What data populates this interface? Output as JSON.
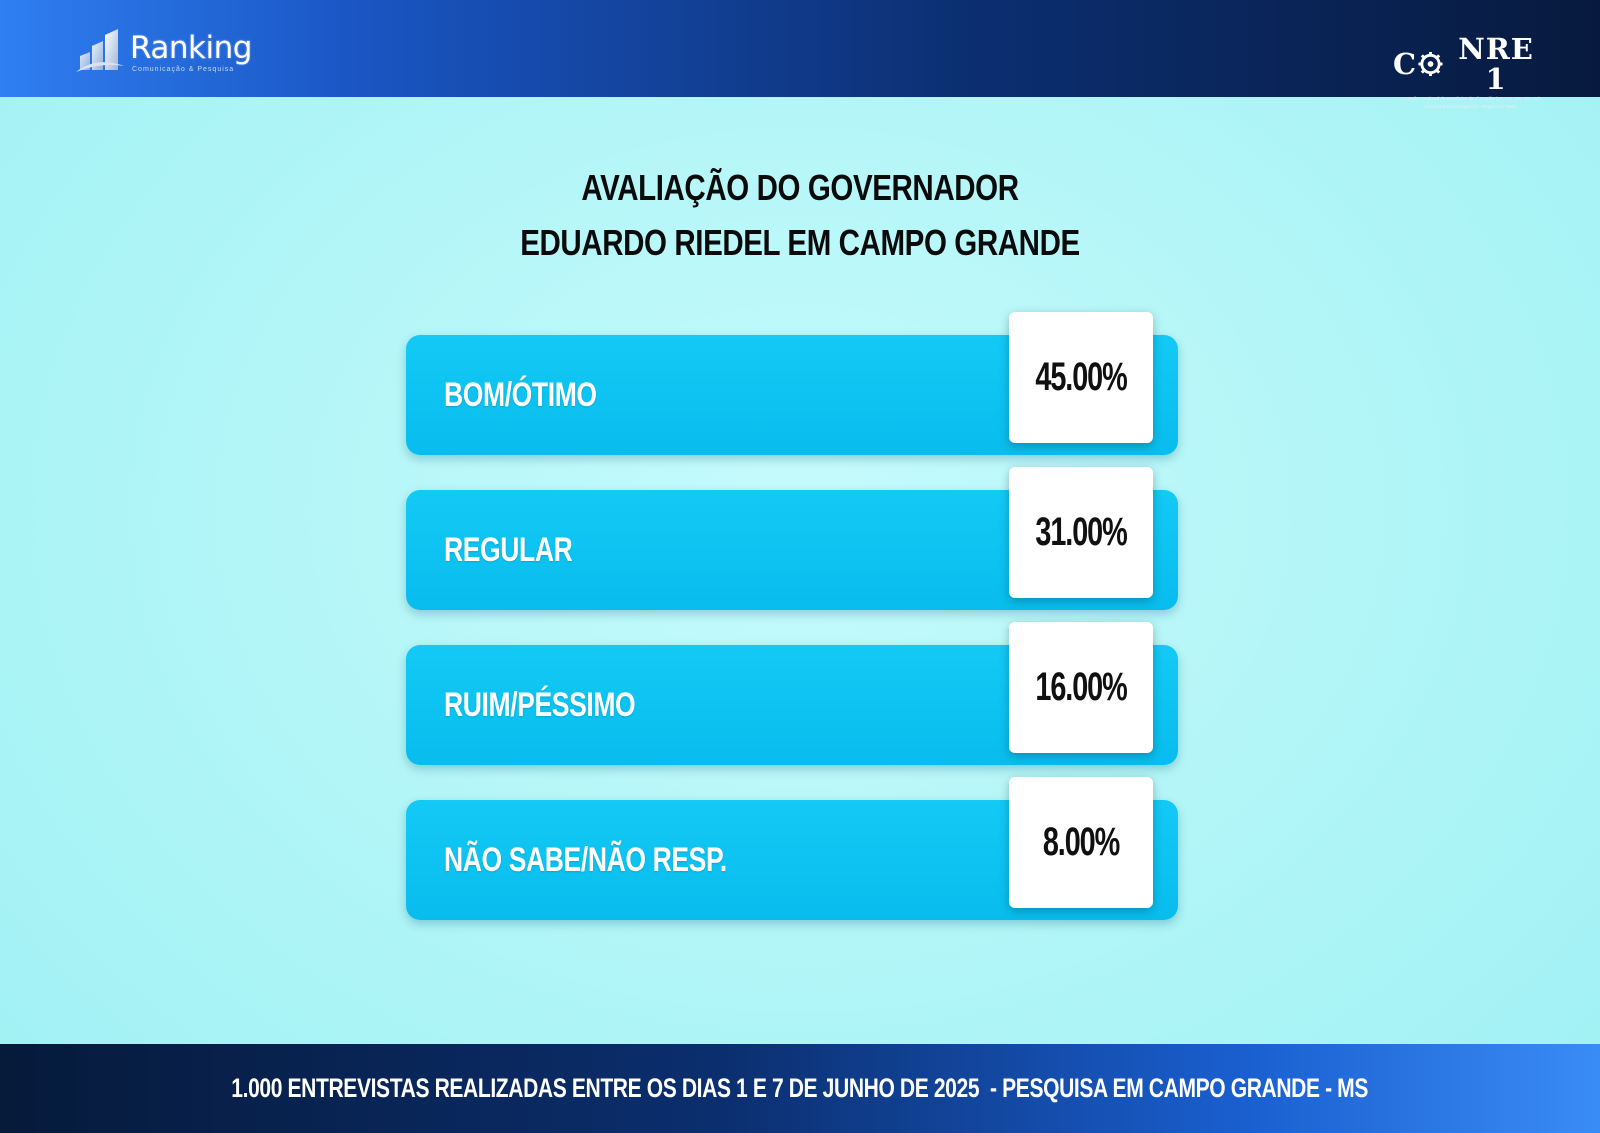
{
  "header": {
    "left_logo": {
      "name": "Ranking",
      "tagline": "Comunicação & Pesquisa",
      "icon": "building-chart-icon"
    },
    "right_logo": {
      "name": "CONRE 1",
      "subtitle_line1": "Conselho Regional de Estatística da 1ª Região (DF, GO, MS, MT, TO)",
      "subtitle_line2": "Ranking Brasil Inteligência - Registro Nº 8649",
      "icon": "gear-icon"
    }
  },
  "title_lines": [
    "AVALIAÇÃO DO GOVERNADOR",
    "EDUARDO RIEDEL EM CAMPO GRANDE"
  ],
  "chart_data": {
    "type": "table",
    "title": "AVALIAÇÃO DO GOVERNADOR EDUARDO RIEDEL EM CAMPO GRANDE",
    "categories": [
      "BOM/ÓTIMO",
      "REGULAR",
      "RUIM/PÉSSIMO",
      "NÃO SABE/NÃO RESP."
    ],
    "values": [
      45.0,
      31.0,
      16.0,
      8.0
    ],
    "value_labels": [
      "45.00%",
      "31.00%",
      "16.00%",
      "8.00%"
    ],
    "unit": "%"
  },
  "footer": {
    "text": "1.000 ENTREVISTAS REALIZADAS ENTRE OS DIAS 1 E 7 DE JUNHO DE 2025  - PESQUISA EM CAMPO GRANDE - MS"
  },
  "colors": {
    "bar": "#0ec3f2",
    "value_box": "#ffffff",
    "background": "#b4f6f8",
    "header_dark": "#071a3e",
    "header_light": "#2f7ff2"
  }
}
